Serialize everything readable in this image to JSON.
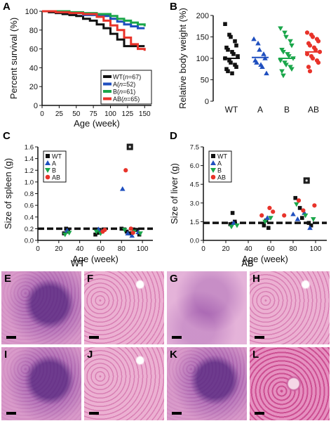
{
  "panels": {
    "A": "A",
    "B": "B",
    "C": "C",
    "D": "D",
    "E": "E",
    "F": "F",
    "G": "G",
    "H": "H",
    "I": "I",
    "J": "J",
    "K": "K",
    "L": "L"
  },
  "hist_titles": {
    "wt": "WT",
    "ab": "AB"
  },
  "colors": {
    "WT": "#111111",
    "A": "#1f4fbf",
    "B": "#1aa64a",
    "AB": "#e8332a",
    "stain_dark": "#7a3f9a",
    "stain_light": "#e8b6d2"
  },
  "chart_data": [
    {
      "id": "A",
      "type": "line",
      "xlabel": "Age (week)",
      "ylabel": "Percent survival (%)",
      "xlim": [
        0,
        160
      ],
      "ylim": [
        0,
        100
      ],
      "xticks": [
        0,
        25,
        50,
        75,
        100,
        125,
        150
      ],
      "yticks": [
        0,
        20,
        40,
        60,
        80,
        100
      ],
      "legend_position": "bottom-right",
      "legend": [
        {
          "key": "WT",
          "label": "WT",
          "n": "67"
        },
        {
          "key": "A",
          "label": "A",
          "n": "52"
        },
        {
          "key": "B",
          "label": "B",
          "n": "61"
        },
        {
          "key": "AB",
          "label": "AB",
          "n": "65"
        }
      ],
      "series": [
        {
          "key": "WT",
          "x": [
            0,
            10,
            20,
            30,
            40,
            50,
            60,
            70,
            80,
            90,
            100,
            110,
            120,
            130,
            140,
            150
          ],
          "y": [
            100,
            99,
            98,
            97,
            96,
            95,
            92,
            90,
            86,
            82,
            76,
            70,
            63,
            63,
            63,
            63
          ]
        },
        {
          "key": "A",
          "x": [
            0,
            20,
            40,
            60,
            80,
            100,
            110,
            120,
            130,
            140,
            150
          ],
          "y": [
            100,
            99,
            98,
            96,
            95,
            92,
            89,
            86,
            84,
            82,
            82
          ]
        },
        {
          "key": "B",
          "x": [
            0,
            20,
            40,
            60,
            80,
            100,
            110,
            120,
            130,
            140,
            150
          ],
          "y": [
            100,
            100,
            99,
            98,
            97,
            95,
            92,
            90,
            88,
            86,
            84
          ]
        },
        {
          "key": "AB",
          "x": [
            0,
            20,
            40,
            60,
            80,
            90,
            100,
            110,
            120,
            130,
            140,
            150
          ],
          "y": [
            100,
            99,
            98,
            97,
            94,
            90,
            85,
            80,
            72,
            65,
            60,
            58
          ]
        }
      ]
    },
    {
      "id": "B",
      "type": "scatter",
      "ylabel": "Relative body weight (%)",
      "ylim": [
        0,
        200
      ],
      "yticks": [
        0,
        50,
        100,
        150,
        200
      ],
      "categories": [
        "WT",
        "A",
        "B",
        "AB"
      ],
      "groups": [
        {
          "key": "WT",
          "marker": "square",
          "mean": 100,
          "values": [
            180,
            155,
            150,
            140,
            130,
            125,
            120,
            115,
            110,
            105,
            100,
            95,
            90,
            85,
            80,
            75,
            70,
            65
          ]
        },
        {
          "key": "A",
          "marker": "triangle-up",
          "mean": 102,
          "values": [
            145,
            135,
            120,
            110,
            100,
            95,
            90,
            85,
            80,
            65
          ]
        },
        {
          "key": "B",
          "marker": "triangle-down",
          "mean": 100,
          "values": [
            170,
            160,
            150,
            140,
            130,
            120,
            115,
            110,
            105,
            100,
            95,
            90,
            85,
            80,
            75,
            70,
            60
          ]
        },
        {
          "key": "AB",
          "marker": "circle",
          "mean": 115,
          "values": [
            160,
            155,
            150,
            145,
            140,
            135,
            130,
            125,
            120,
            115,
            110,
            105,
            100,
            95,
            90,
            80,
            70
          ]
        }
      ]
    },
    {
      "id": "C",
      "type": "scatter",
      "xlabel": "Age (week)",
      "ylabel": "Size of spleen (g)",
      "xlim": [
        0,
        110
      ],
      "ylim": [
        0,
        1.6
      ],
      "xticks": [
        0,
        20,
        40,
        60,
        80,
        100
      ],
      "yticks": [
        0,
        0.2,
        0.4,
        0.6,
        0.8,
        1.0,
        1.2,
        1.4,
        1.6
      ],
      "ytick_labels": [
        "0.0",
        "0.2",
        "0.4",
        "0.6",
        "0.8",
        "1.0",
        "1.2",
        "1.4",
        "1.6"
      ],
      "reference_line": 0.2,
      "legend_position": "top-left",
      "legend": [
        {
          "key": "WT",
          "label": "WT"
        },
        {
          "key": "A",
          "label": "A"
        },
        {
          "key": "B",
          "label": "B"
        },
        {
          "key": "AB",
          "label": "AB"
        }
      ],
      "points": {
        "WT": [
          [
            25,
            0.12
          ],
          [
            27,
            0.2
          ],
          [
            29,
            0.15
          ],
          [
            55,
            0.1
          ],
          [
            57,
            0.13
          ],
          [
            59,
            0.18
          ],
          [
            80,
            0.2
          ],
          [
            85,
            0.15
          ],
          [
            88,
            0.12
          ],
          [
            95,
            0.18
          ],
          [
            97,
            0.1
          ]
        ],
        "A": [
          [
            28,
            0.17
          ],
          [
            58,
            0.19
          ],
          [
            81,
            0.88
          ],
          [
            86,
            0.12
          ],
          [
            90,
            0.08
          ],
          [
            96,
            0.14
          ]
        ],
        "B": [
          [
            26,
            0.1
          ],
          [
            30,
            0.13
          ],
          [
            56,
            0.15
          ],
          [
            60,
            0.12
          ],
          [
            83,
            0.18
          ],
          [
            92,
            0.15
          ],
          [
            98,
            0.12
          ]
        ],
        "AB": [
          [
            62,
            0.15
          ],
          [
            64,
            0.18
          ],
          [
            84,
            1.2
          ],
          [
            89,
            0.2
          ],
          [
            91,
            0.13
          ]
        ]
      },
      "outlier": {
        "key": "WT",
        "x": 88,
        "y": 1.6
      }
    },
    {
      "id": "D",
      "type": "scatter",
      "xlabel": "Age (week)",
      "ylabel": "Size of liver (g)",
      "xlim": [
        0,
        110
      ],
      "ylim": [
        0,
        7.5
      ],
      "xticks": [
        0,
        20,
        40,
        60,
        80,
        100
      ],
      "yticks": [
        0,
        1.5,
        3.0,
        4.5,
        6.0,
        7.5
      ],
      "ytick_labels": [
        "0.0",
        "1.5",
        "3.0",
        "4.5",
        "6.0",
        "7.5"
      ],
      "reference_line": 1.4,
      "legend_position": "top-left",
      "legend": [
        {
          "key": "WT",
          "label": "WT"
        },
        {
          "key": "A",
          "label": "A"
        },
        {
          "key": "B",
          "label": "B"
        },
        {
          "key": "AB",
          "label": "AB"
        }
      ],
      "points": {
        "WT": [
          [
            24,
            1.3
          ],
          [
            26,
            2.2
          ],
          [
            28,
            1.5
          ],
          [
            54,
            1.2
          ],
          [
            56,
            1.6
          ],
          [
            58,
            1.0
          ],
          [
            82,
            3.4
          ],
          [
            86,
            2.6
          ],
          [
            88,
            1.8
          ],
          [
            94,
            1.4
          ],
          [
            96,
            1.2
          ]
        ],
        "A": [
          [
            27,
            1.4
          ],
          [
            57,
            1.8
          ],
          [
            80,
            2.1
          ],
          [
            84,
            1.7
          ],
          [
            90,
            2.2
          ],
          [
            95,
            1.0
          ]
        ],
        "B": [
          [
            25,
            1.1
          ],
          [
            30,
            1.2
          ],
          [
            55,
            1.5
          ],
          [
            60,
            1.8
          ],
          [
            83,
            2.9
          ],
          [
            91,
            2.0
          ],
          [
            98,
            1.7
          ]
        ],
        "AB": [
          [
            52,
            2.0
          ],
          [
            59,
            2.6
          ],
          [
            62,
            2.3
          ],
          [
            72,
            2.0
          ],
          [
            85,
            3.2
          ],
          [
            89,
            2.4
          ],
          [
            99,
            2.8
          ]
        ]
      },
      "outlier": {
        "key": "WT",
        "x": 92,
        "y": 4.8
      }
    }
  ]
}
